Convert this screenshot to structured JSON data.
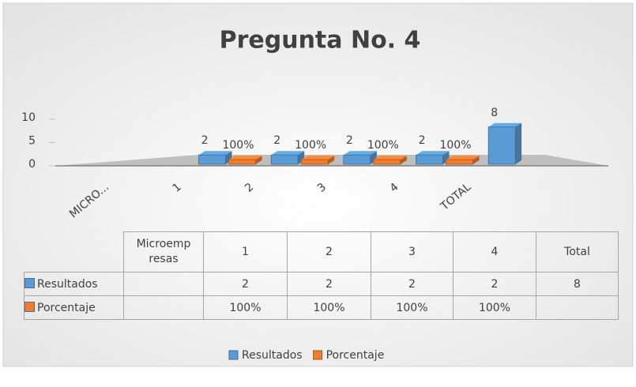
{
  "chart_data": {
    "type": "bar3d",
    "title": "Pregunta No. 4",
    "categories": [
      "MICRO...",
      "1",
      "2",
      "3",
      "4",
      "TOTAL"
    ],
    "series": [
      {
        "name": "Resultados",
        "color": "#5b9bd5",
        "values": [
          null,
          2,
          2,
          2,
          2,
          8
        ]
      },
      {
        "name": "Porcentaje",
        "color": "#ed7d31",
        "values": [
          null,
          1,
          1,
          1,
          1,
          null
        ],
        "value_labels": [
          null,
          "100%",
          "100%",
          "100%",
          "100%",
          null
        ]
      }
    ],
    "ylim": [
      0,
      10
    ],
    "yticks": [
      0,
      5,
      10
    ],
    "legend": "bottom",
    "data_table": {
      "headers": [
        "Microempresas",
        "1",
        "2",
        "3",
        "4",
        "Total"
      ]
    }
  }
}
